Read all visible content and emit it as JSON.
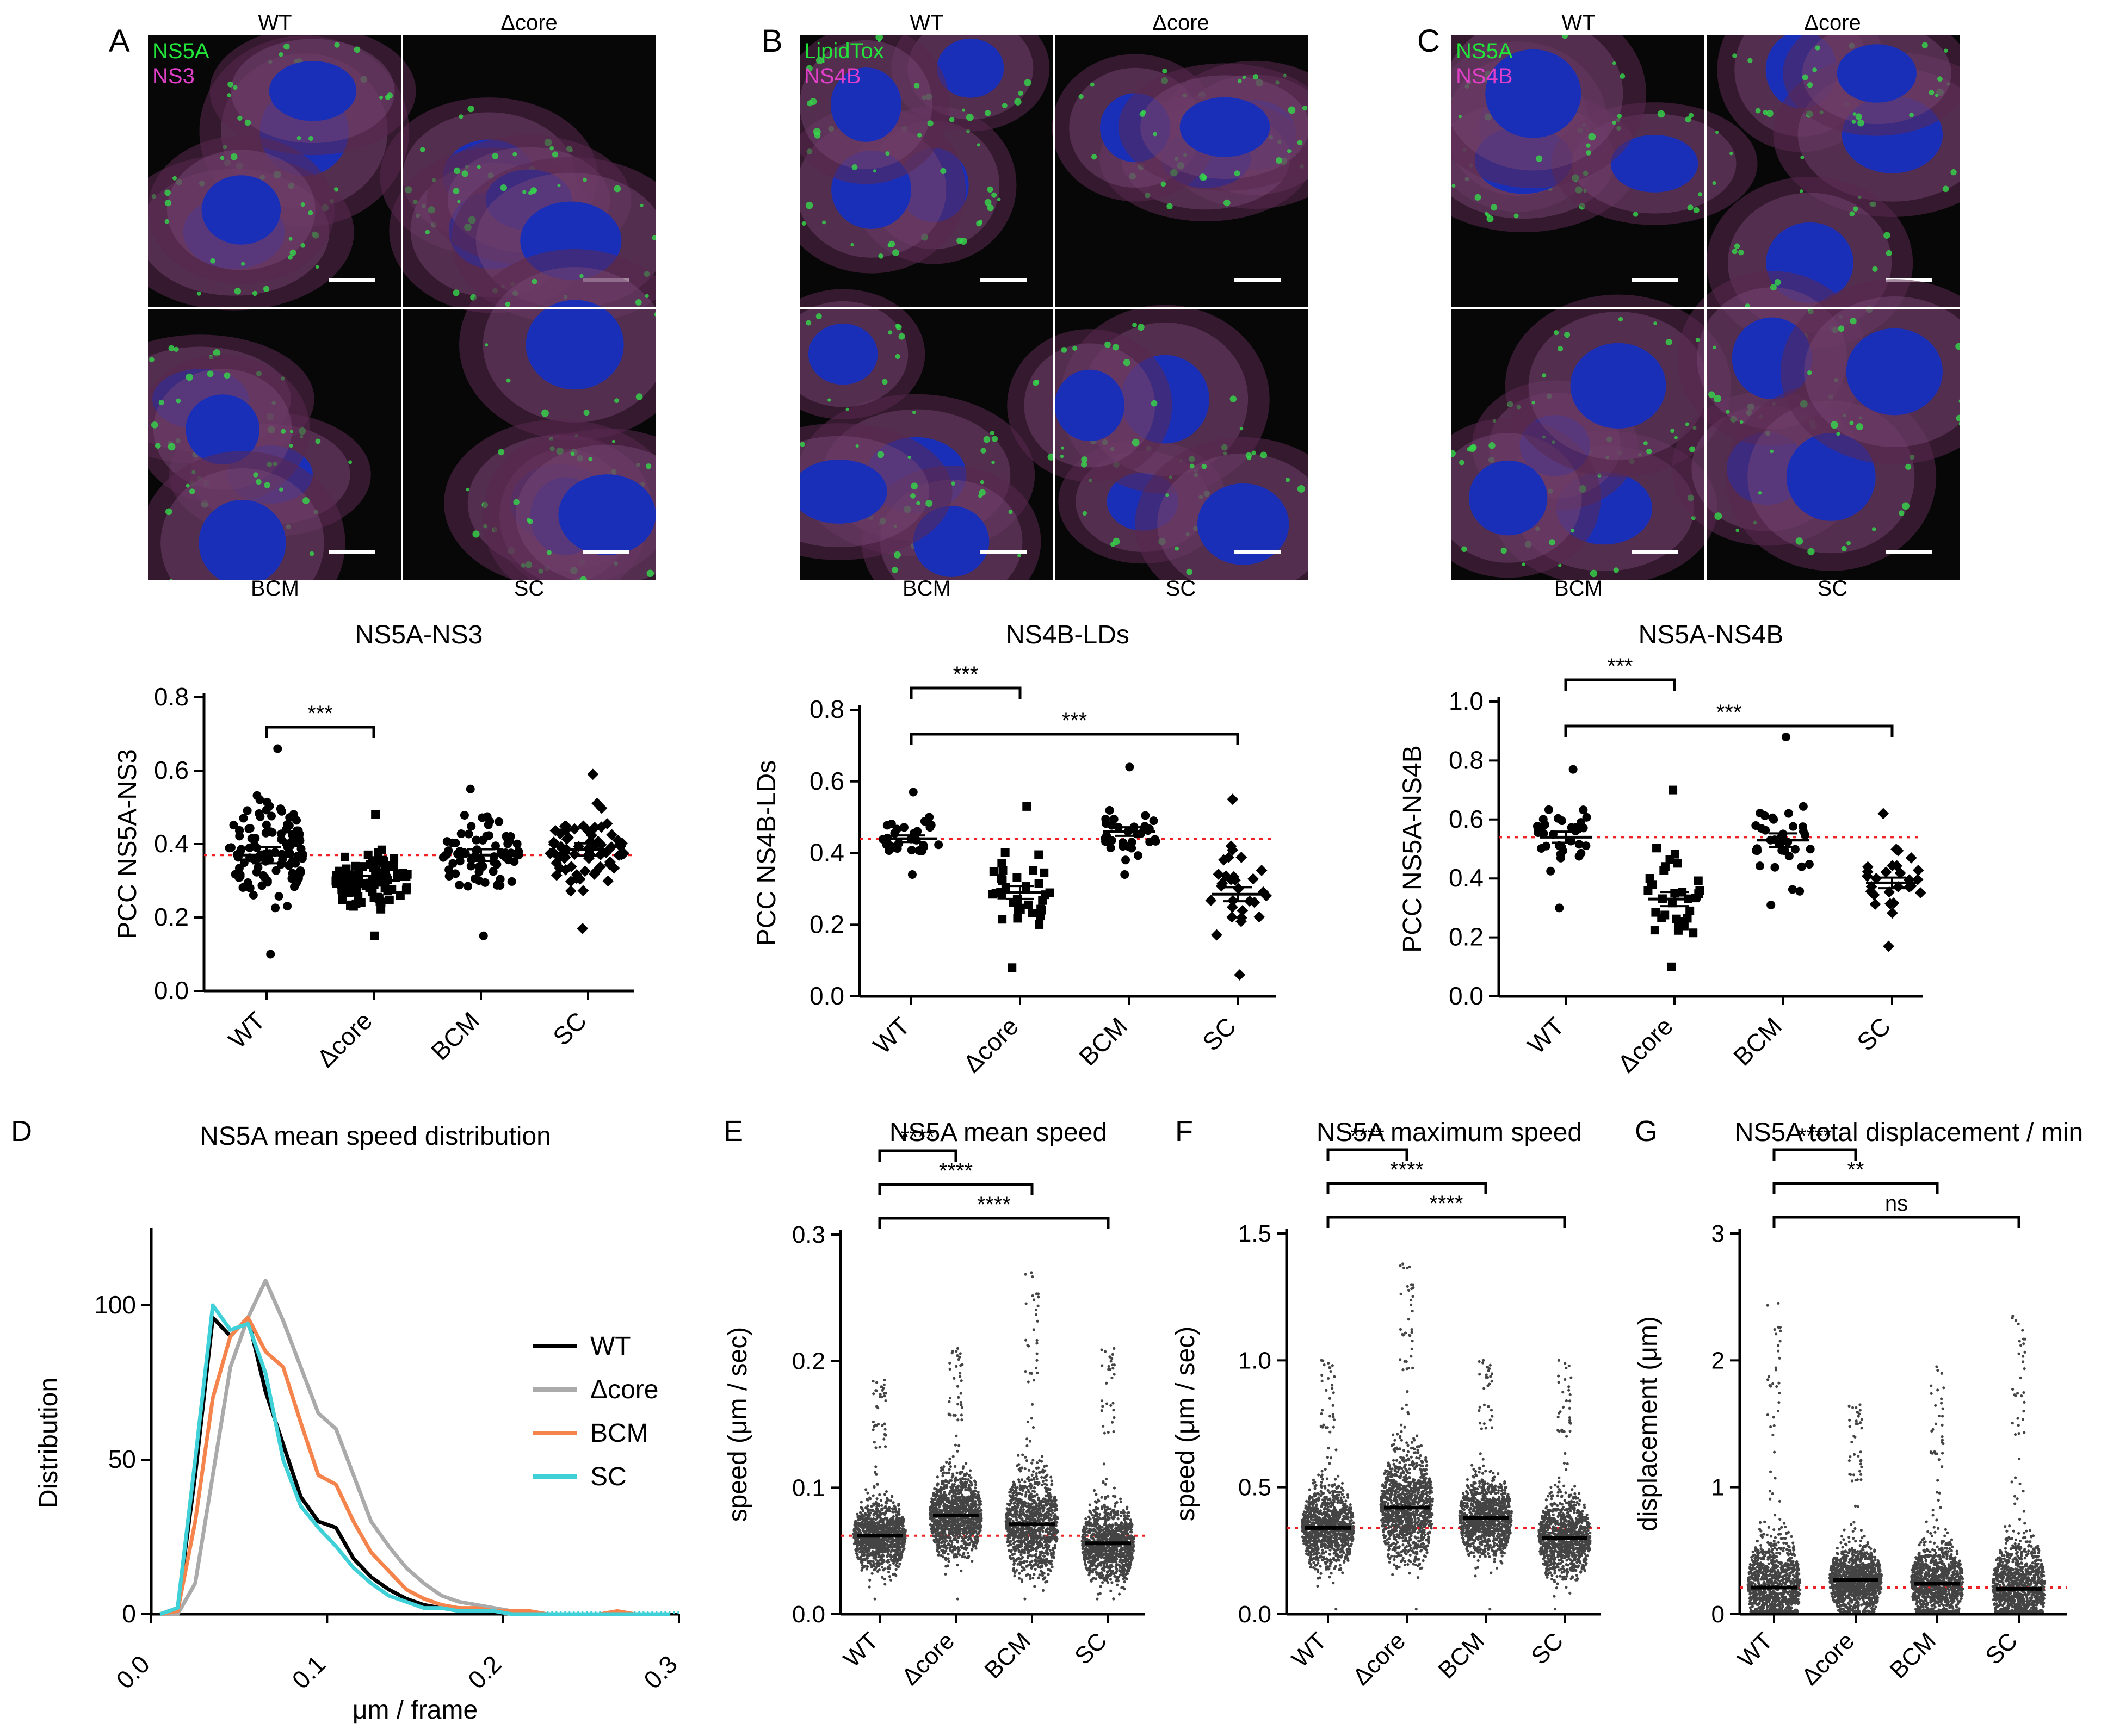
{
  "micrographs": [
    {
      "letter": "A",
      "channel1": "NS5A",
      "channel2": "NS3",
      "color1": "#22e33a",
      "color2": "#e040c8",
      "top_left": "WT",
      "top_right": "Δcore",
      "bottom_left": "BCM",
      "bottom_right": "SC"
    },
    {
      "letter": "B",
      "channel1": "LipidTox",
      "channel2": "NS4B",
      "color1": "#22e33a",
      "color2": "#e040c8",
      "top_left": "WT",
      "top_right": "Δcore",
      "bottom_left": "BCM",
      "bottom_right": "SC"
    },
    {
      "letter": "C",
      "channel1": "NS5A",
      "channel2": "NS4B",
      "color1": "#22e33a",
      "color2": "#e040c8",
      "top_left": "WT",
      "top_right": "Δcore",
      "bottom_left": "BCM",
      "bottom_right": "SC"
    }
  ],
  "chart_data": [
    {
      "type": "scatter",
      "panel": "A",
      "title": "NS5A-NS3",
      "ylabel": "PCC NS5A-NS3",
      "ylim": [
        0,
        0.8
      ],
      "yticks": [
        "0.0",
        "0.2",
        "0.4",
        "0.6",
        "0.8"
      ],
      "categories": [
        "WT",
        "Δcore",
        "BCM",
        "SC"
      ],
      "means": [
        0.37,
        0.3,
        0.37,
        0.385
      ],
      "n": [
        110,
        95,
        75,
        70
      ],
      "ranges": [
        [
          0.1,
          0.66
        ],
        [
          0.15,
          0.48
        ],
        [
          0.15,
          0.55
        ],
        [
          0.17,
          0.59
        ]
      ],
      "reference": 0.37,
      "markers": [
        "circle",
        "square",
        "circle",
        "diamond"
      ],
      "significance": [
        {
          "from": "WT",
          "to": "Δcore",
          "label": "***"
        }
      ]
    },
    {
      "type": "scatter",
      "panel": "B",
      "title": "NS4B-LDs",
      "ylabel": "PCC NS4B-LDs",
      "ylim": [
        0,
        0.8
      ],
      "yticks": [
        "0.0",
        "0.2",
        "0.4",
        "0.6",
        "0.8"
      ],
      "categories": [
        "WT",
        "Δcore",
        "BCM",
        "SC"
      ],
      "means": [
        0.44,
        0.29,
        0.46,
        0.285
      ],
      "n": [
        32,
        36,
        34,
        30
      ],
      "ranges": [
        [
          0.34,
          0.57
        ],
        [
          0.08,
          0.53
        ],
        [
          0.34,
          0.64
        ],
        [
          0.06,
          0.55
        ]
      ],
      "reference": 0.44,
      "markers": [
        "circle",
        "square",
        "circle",
        "diamond"
      ],
      "significance": [
        {
          "from": "WT",
          "to": "Δcore",
          "label": "***"
        },
        {
          "from": "WT",
          "to": "SC",
          "label": "***"
        }
      ]
    },
    {
      "type": "scatter",
      "panel": "C",
      "title": "NS5A-NS4B",
      "ylabel": "PCC NS5A-NS4B",
      "ylim": [
        0,
        1.0
      ],
      "yticks": [
        "0.0",
        "0.2",
        "0.4",
        "0.6",
        "0.8",
        "1.0"
      ],
      "categories": [
        "WT",
        "Δcore",
        "BCM",
        "SC"
      ],
      "means": [
        0.54,
        0.33,
        0.53,
        0.385
      ],
      "n": [
        34,
        32,
        36,
        28
      ],
      "ranges": [
        [
          0.3,
          0.77
        ],
        [
          0.1,
          0.7
        ],
        [
          0.31,
          0.88
        ],
        [
          0.17,
          0.62
        ]
      ],
      "reference": 0.54,
      "markers": [
        "circle",
        "square",
        "circle",
        "diamond"
      ],
      "significance": [
        {
          "from": "WT",
          "to": "Δcore",
          "label": "***"
        },
        {
          "from": "WT",
          "to": "SC",
          "label": "***"
        }
      ]
    },
    {
      "type": "line",
      "panel": "D",
      "title": "NS5A mean speed distribution",
      "xlabel": "μm / frame",
      "ylabel": "Distribution",
      "xlim": [
        0,
        0.3
      ],
      "ylim": [
        0,
        125
      ],
      "xticks": [
        "0.0",
        "0.1",
        "0.2",
        "0.3"
      ],
      "yticks": [
        "0",
        "50",
        "100"
      ],
      "x": [
        0.005,
        0.015,
        0.025,
        0.035,
        0.045,
        0.055,
        0.065,
        0.075,
        0.085,
        0.095,
        0.105,
        0.115,
        0.125,
        0.135,
        0.145,
        0.155,
        0.165,
        0.175,
        0.185,
        0.195,
        0.205,
        0.215,
        0.225,
        0.235,
        0.245,
        0.255,
        0.265,
        0.275,
        0.285,
        0.295
      ],
      "series": [
        {
          "name": "WT",
          "color": "#000000",
          "values": [
            0,
            2,
            45,
            96,
            90,
            96,
            72,
            55,
            38,
            30,
            28,
            18,
            12,
            8,
            5,
            3,
            2,
            2,
            1,
            1,
            1,
            0,
            0,
            0,
            0,
            0,
            0,
            0,
            0,
            0
          ]
        },
        {
          "name": "Δcore",
          "color": "#aaaaaa",
          "values": [
            0,
            0,
            10,
            45,
            80,
            96,
            108,
            95,
            80,
            65,
            60,
            45,
            30,
            22,
            15,
            10,
            6,
            4,
            3,
            2,
            1,
            1,
            0,
            0,
            0,
            0,
            0,
            0,
            0,
            0
          ]
        },
        {
          "name": "BCM",
          "color": "#f4844c",
          "values": [
            0,
            1,
            30,
            70,
            90,
            96,
            85,
            80,
            62,
            45,
            42,
            30,
            20,
            14,
            8,
            5,
            3,
            2,
            2,
            1,
            1,
            1,
            0,
            0,
            0,
            0,
            1,
            0,
            0,
            0
          ]
        },
        {
          "name": "SC",
          "color": "#3fd0d8",
          "values": [
            0,
            2,
            50,
            100,
            92,
            94,
            78,
            50,
            35,
            28,
            22,
            15,
            10,
            6,
            4,
            2,
            2,
            1,
            1,
            1,
            0,
            0,
            0,
            0,
            0,
            0,
            0,
            0,
            0,
            0
          ]
        }
      ]
    },
    {
      "type": "scatter",
      "panel": "E",
      "title": "NS5A mean speed",
      "ylabel": "speed (μm / sec)",
      "ylim": [
        0,
        0.3
      ],
      "yticks": [
        "0.0",
        "0.1",
        "0.2",
        "0.3"
      ],
      "categories": [
        "WT",
        "Δcore",
        "BCM",
        "SC"
      ],
      "means": [
        0.062,
        0.078,
        0.071,
        0.056
      ],
      "n": [
        1100,
        1200,
        1100,
        1100
      ],
      "ranges": [
        [
          0.012,
          0.185
        ],
        [
          0.012,
          0.21
        ],
        [
          0.012,
          0.27
        ],
        [
          0.012,
          0.21
        ]
      ],
      "reference": 0.062,
      "significance": [
        {
          "from": "WT",
          "to": "Δcore",
          "label": "****"
        },
        {
          "from": "WT",
          "to": "BCM",
          "label": "****"
        },
        {
          "from": "WT",
          "to": "SC",
          "label": "****"
        }
      ]
    },
    {
      "type": "scatter",
      "panel": "F",
      "title": "NS5A maximum speed",
      "ylabel": "speed (μm / sec)",
      "ylim": [
        0,
        1.5
      ],
      "yticks": [
        "0.0",
        "0.5",
        "1.0",
        "1.5"
      ],
      "categories": [
        "WT",
        "Δcore",
        "BCM",
        "SC"
      ],
      "means": [
        0.34,
        0.42,
        0.38,
        0.3
      ],
      "n": [
        1100,
        1200,
        1100,
        1100
      ],
      "ranges": [
        [
          0.02,
          1.0
        ],
        [
          0.02,
          1.38
        ],
        [
          0.02,
          1.0
        ],
        [
          0.02,
          1.0
        ]
      ],
      "reference": 0.34,
      "significance": [
        {
          "from": "WT",
          "to": "Δcore",
          "label": "****"
        },
        {
          "from": "WT",
          "to": "BCM",
          "label": "****"
        },
        {
          "from": "WT",
          "to": "SC",
          "label": "****"
        }
      ]
    },
    {
      "type": "scatter",
      "panel": "G",
      "title": "NS5A total displacement / min",
      "ylabel": "displacement (μm)",
      "ylim": [
        0,
        3
      ],
      "yticks": [
        "0",
        "1",
        "2",
        "3"
      ],
      "categories": [
        "WT",
        "Δcore",
        "BCM",
        "SC"
      ],
      "means": [
        0.21,
        0.27,
        0.24,
        0.2
      ],
      "n": [
        1100,
        1200,
        1100,
        1100
      ],
      "ranges": [
        [
          0.02,
          2.45
        ],
        [
          0.02,
          1.65
        ],
        [
          0.02,
          1.95
        ],
        [
          0.02,
          2.35
        ]
      ],
      "reference": 0.21,
      "significance": [
        {
          "from": "WT",
          "to": "Δcore",
          "label": "****"
        },
        {
          "from": "WT",
          "to": "BCM",
          "label": "**"
        },
        {
          "from": "WT",
          "to": "SC",
          "label": "ns"
        }
      ]
    }
  ]
}
